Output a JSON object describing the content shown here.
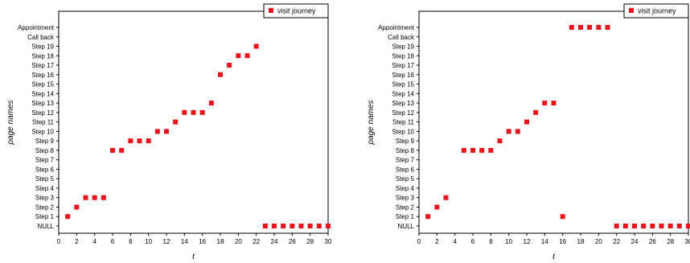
{
  "chart_data": [
    {
      "type": "scatter",
      "xlabel": "t",
      "ylabel": "page names",
      "xlim": [
        0,
        30
      ],
      "x_ticks": [
        "0",
        "2",
        "4",
        "6",
        "8",
        "10",
        "12",
        "14",
        "16",
        "18",
        "20",
        "22",
        "24",
        "26",
        "28",
        "30"
      ],
      "categories": [
        "NULL",
        "Step 1",
        "Step 2",
        "Step 3",
        "Step 4",
        "Step 5",
        "Step 6",
        "Step 7",
        "Step 8",
        "Step 9",
        "Step 10",
        "Step 11",
        "Step 12",
        "Step 13",
        "Step 14",
        "Step 15",
        "Step 16",
        "Step 17",
        "Step 18",
        "Step 19",
        "Call back",
        "Appointment"
      ],
      "legend": "top-right",
      "color": "#e8141b",
      "series": [
        {
          "name": "visit journey",
          "points": [
            {
              "x": 1,
              "y": "Step 1"
            },
            {
              "x": 2,
              "y": "Step 2"
            },
            {
              "x": 3,
              "y": "Step 3"
            },
            {
              "x": 4,
              "y": "Step 3"
            },
            {
              "x": 5,
              "y": "Step 3"
            },
            {
              "x": 6,
              "y": "Step 8"
            },
            {
              "x": 7,
              "y": "Step 8"
            },
            {
              "x": 8,
              "y": "Step 9"
            },
            {
              "x": 9,
              "y": "Step 9"
            },
            {
              "x": 10,
              "y": "Step 9"
            },
            {
              "x": 11,
              "y": "Step 10"
            },
            {
              "x": 12,
              "y": "Step 10"
            },
            {
              "x": 13,
              "y": "Step 11"
            },
            {
              "x": 14,
              "y": "Step 12"
            },
            {
              "x": 15,
              "y": "Step 12"
            },
            {
              "x": 16,
              "y": "Step 12"
            },
            {
              "x": 17,
              "y": "Step 13"
            },
            {
              "x": 18,
              "y": "Step 16"
            },
            {
              "x": 19,
              "y": "Step 17"
            },
            {
              "x": 20,
              "y": "Step 18"
            },
            {
              "x": 21,
              "y": "Step 18"
            },
            {
              "x": 22,
              "y": "Step 19"
            },
            {
              "x": 23,
              "y": "NULL"
            },
            {
              "x": 24,
              "y": "NULL"
            },
            {
              "x": 25,
              "y": "NULL"
            },
            {
              "x": 26,
              "y": "NULL"
            },
            {
              "x": 27,
              "y": "NULL"
            },
            {
              "x": 28,
              "y": "NULL"
            },
            {
              "x": 29,
              "y": "NULL"
            },
            {
              "x": 30,
              "y": "NULL"
            }
          ]
        }
      ]
    },
    {
      "type": "scatter",
      "xlabel": "t",
      "ylabel": "page names",
      "xlim": [
        0,
        30
      ],
      "x_ticks": [
        "0",
        "2",
        "4",
        "6",
        "8",
        "10",
        "12",
        "14",
        "16",
        "18",
        "20",
        "22",
        "24",
        "26",
        "28",
        "30"
      ],
      "categories": [
        "NULL",
        "Step 1",
        "Step 2",
        "Step 3",
        "Step 4",
        "Step 5",
        "Step 6",
        "Step 7",
        "Step 8",
        "Step 9",
        "Step 10",
        "Step 11",
        "Step 12",
        "Step 13",
        "Step 14",
        "Step 15",
        "Step 16",
        "Step 17",
        "Step 18",
        "Step 19",
        "Call back",
        "Appointment"
      ],
      "legend": "top-right",
      "color": "#e8141b",
      "series": [
        {
          "name": "visit journey",
          "points": [
            {
              "x": 1,
              "y": "Step 1"
            },
            {
              "x": 2,
              "y": "Step 2"
            },
            {
              "x": 3,
              "y": "Step 3"
            },
            {
              "x": 5,
              "y": "Step 8"
            },
            {
              "x": 6,
              "y": "Step 8"
            },
            {
              "x": 7,
              "y": "Step 8"
            },
            {
              "x": 8,
              "y": "Step 8"
            },
            {
              "x": 9,
              "y": "Step 9"
            },
            {
              "x": 10,
              "y": "Step 10"
            },
            {
              "x": 11,
              "y": "Step 10"
            },
            {
              "x": 12,
              "y": "Step 11"
            },
            {
              "x": 13,
              "y": "Step 12"
            },
            {
              "x": 14,
              "y": "Step 13"
            },
            {
              "x": 15,
              "y": "Step 13"
            },
            {
              "x": 16,
              "y": "Step 1"
            },
            {
              "x": 17,
              "y": "Appointment"
            },
            {
              "x": 18,
              "y": "Appointment"
            },
            {
              "x": 19,
              "y": "Appointment"
            },
            {
              "x": 20,
              "y": "Appointment"
            },
            {
              "x": 21,
              "y": "Appointment"
            },
            {
              "x": 22,
              "y": "NULL"
            },
            {
              "x": 23,
              "y": "NULL"
            },
            {
              "x": 24,
              "y": "NULL"
            },
            {
              "x": 25,
              "y": "NULL"
            },
            {
              "x": 26,
              "y": "NULL"
            },
            {
              "x": 27,
              "y": "NULL"
            },
            {
              "x": 28,
              "y": "NULL"
            },
            {
              "x": 29,
              "y": "NULL"
            },
            {
              "x": 30,
              "y": "NULL"
            }
          ]
        }
      ]
    }
  ]
}
